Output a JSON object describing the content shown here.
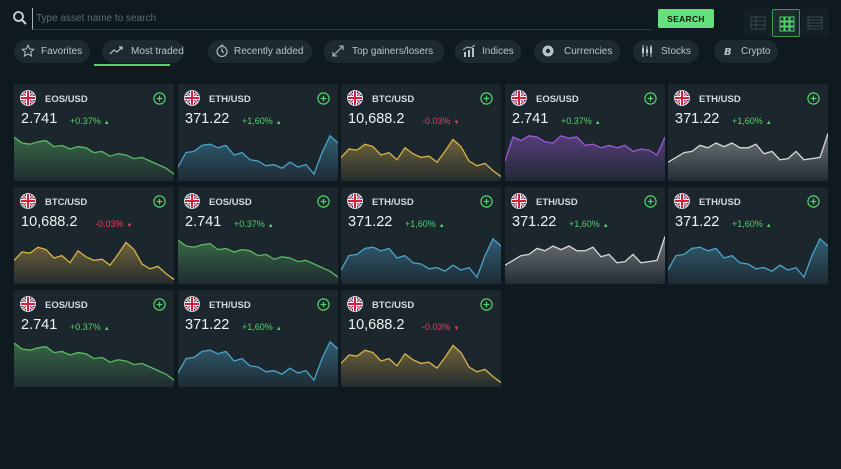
{
  "search": {
    "placeholder": "Type asset name to search",
    "button_label": "SEARCH"
  },
  "tabs": [
    {
      "label": "Favorites",
      "icon": "star-icon",
      "active": false
    },
    {
      "label": "Most traded",
      "icon": "trending-icon",
      "active": true
    },
    {
      "label": "Recently added",
      "icon": "clock-icon",
      "active": false
    },
    {
      "label": "Top gainers/losers",
      "icon": "arrows-icon",
      "active": false
    },
    {
      "label": "Indices",
      "icon": "bar-chart-icon",
      "active": false
    },
    {
      "label": "Currencies",
      "icon": "money-icon",
      "active": false
    },
    {
      "label": "Stocks",
      "icon": "candles-icon",
      "active": false
    },
    {
      "label": "Crypto",
      "icon": "bitcoin-icon",
      "active": false
    }
  ],
  "colors": {
    "accent": "#52d36a",
    "negative": "#ee3d63",
    "green_chart": "#5cb866",
    "blue_chart": "#4ba3c9",
    "yellow_chart": "#d8b24a",
    "purple_chart": "#9b5bd6",
    "gray_chart": "#d8d8d8"
  },
  "assets": [
    {
      "pair": "EOS/USD",
      "price": "2.741",
      "change": "+0.37%",
      "direction": "up",
      "chart": "green"
    },
    {
      "pair": "ETH/USD",
      "price": "371.22",
      "change": "+1,60%",
      "direction": "up",
      "chart": "blue"
    },
    {
      "pair": "BTC/USD",
      "price": "10,688.2",
      "change": "-0.03%",
      "direction": "down",
      "chart": "yellow"
    },
    {
      "pair": "EOS/USD",
      "price": "2.741",
      "change": "+0.37%",
      "direction": "up",
      "chart": "purple"
    },
    {
      "pair": "ETH/USD",
      "price": "371.22",
      "change": "+1,60%",
      "direction": "up",
      "chart": "gray"
    },
    {
      "pair": "BTC/USD",
      "price": "10,688.2",
      "change": "-0.03%",
      "direction": "down",
      "chart": "yellow"
    },
    {
      "pair": "EOS/USD",
      "price": "2.741",
      "change": "+0.37%",
      "direction": "up",
      "chart": "green"
    },
    {
      "pair": "ETH/USD",
      "price": "371.22",
      "change": "+1,60%",
      "direction": "up",
      "chart": "blue"
    },
    {
      "pair": "ETH/USD",
      "price": "371.22",
      "change": "+1,60%",
      "direction": "up",
      "chart": "gray"
    },
    {
      "pair": "ETH/USD",
      "price": "371.22",
      "change": "+1,60%",
      "direction": "up",
      "chart": "blue"
    },
    {
      "pair": "EOS/USD",
      "price": "2.741",
      "change": "+0.37%",
      "direction": "up",
      "chart": "green"
    },
    {
      "pair": "ETH/USD",
      "price": "371.22",
      "change": "+1,60%",
      "direction": "up",
      "chart": "blue"
    },
    {
      "pair": "BTC/USD",
      "price": "10,688.2",
      "change": "-0.03%",
      "direction": "down",
      "chart": "yellow"
    }
  ]
}
